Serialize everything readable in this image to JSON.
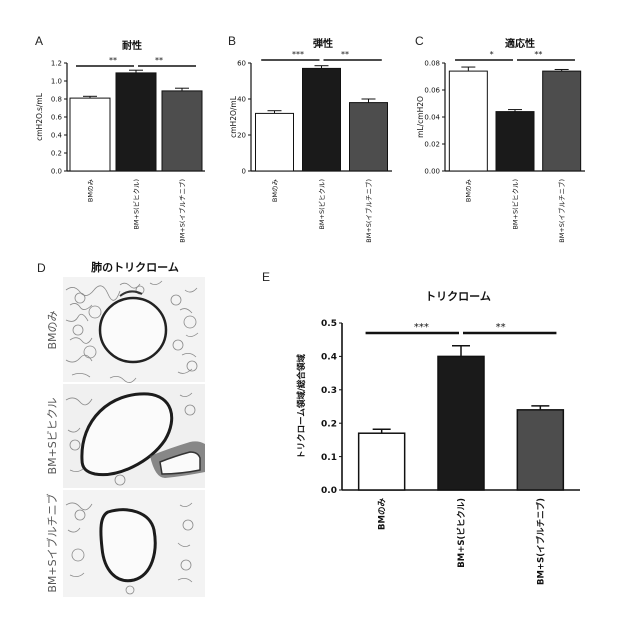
{
  "chart_data": [
    {
      "panel": "A",
      "type": "bar",
      "title": "耐性",
      "ylabel": "cmH2O.s/mL",
      "ylim": [
        0,
        1.2
      ],
      "yticks": [
        "0.0",
        "0.2",
        "0.4",
        "0.6",
        "0.8",
        "1.0",
        "1.2"
      ],
      "categories": [
        "BMのみ",
        "BM+S(ビヒクル)",
        "BM+S(イブルチニブ)"
      ],
      "values": [
        0.81,
        1.09,
        0.89
      ],
      "errors": [
        0.02,
        0.03,
        0.03
      ],
      "significance": [
        "**",
        "**"
      ]
    },
    {
      "panel": "B",
      "type": "bar",
      "title": "弾性",
      "ylabel": "cmH2O/mL",
      "ylim": [
        0,
        60
      ],
      "yticks": [
        "0",
        "20",
        "40",
        "60"
      ],
      "categories": [
        "BMのみ",
        "BM+S(ビヒクル)",
        "BM+S(イブルチニブ)"
      ],
      "values": [
        32,
        57,
        38
      ],
      "errors": [
        1.5,
        1.5,
        2
      ],
      "significance": [
        "***",
        "**"
      ]
    },
    {
      "panel": "C",
      "type": "bar",
      "title": "適応性",
      "ylabel": "mL/cmH2O",
      "ylim": [
        0,
        0.08
      ],
      "yticks": [
        "0.00",
        "0.02",
        "0.04",
        "0.06",
        "0.08"
      ],
      "categories": [
        "BMのみ",
        "BM+S(ビヒクル)",
        "BM+S(イブルチニブ)"
      ],
      "values": [
        0.074,
        0.044,
        0.074
      ],
      "errors": [
        0.003,
        0.0015,
        0.0012
      ],
      "significance": [
        "*",
        "**"
      ]
    },
    {
      "panel": "E",
      "type": "bar",
      "title": "トリクローム",
      "ylabel": "トリクローム領域/総合領域",
      "ylim": [
        0,
        0.5
      ],
      "yticks": [
        "0.0",
        "0.1",
        "0.2",
        "0.3",
        "0.4",
        "0.5"
      ],
      "categories": [
        "BMのみ",
        "BM+S(ビヒクル)",
        "BM+S(イブルチニブ)"
      ],
      "values": [
        0.17,
        0.4,
        0.24
      ],
      "errors": [
        0.012,
        0.032,
        0.012
      ],
      "significance": [
        "***",
        "**"
      ]
    }
  ],
  "histology": {
    "panel": "D",
    "title": "肺のトリクローム",
    "labels": [
      "BMのみ",
      "BM+Sビヒクル",
      "BM+Sイブルチニブ"
    ]
  },
  "colors": {
    "bar1": "#ffffff",
    "bar2": "#1a1a1a",
    "bar3": "#4d4d4d"
  }
}
